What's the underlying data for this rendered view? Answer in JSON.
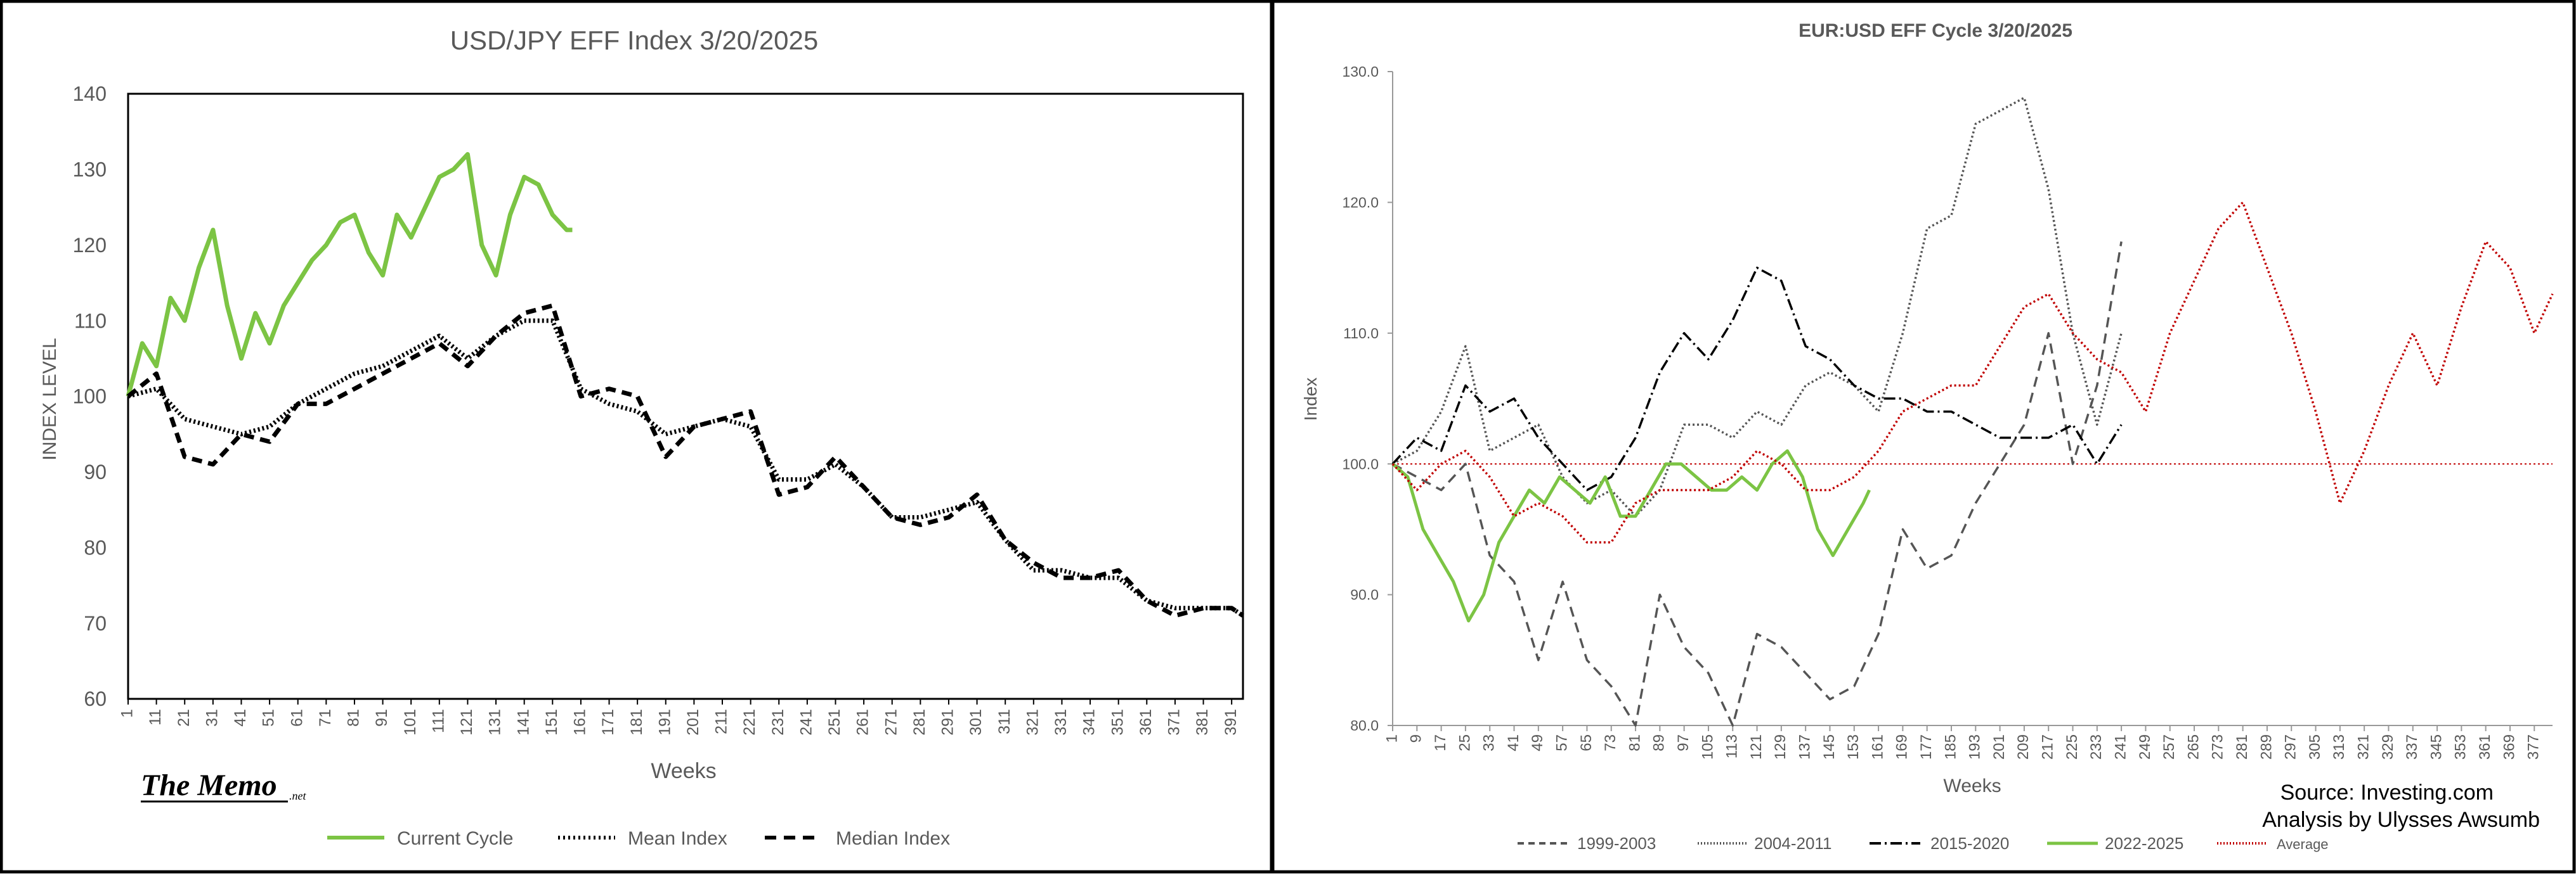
{
  "left_chart": {
    "title": "USD/JPY EFF Index 3/20/2025",
    "xlabel": "Weeks",
    "ylabel": "INDEX LEVEL",
    "logo_main": "The Memo",
    "logo_sub": ".net",
    "legend": [
      "Current Cycle",
      "Mean Index",
      "Median Index"
    ]
  },
  "right_chart": {
    "title": "EUR:USD  EFF Cycle 3/20/2025",
    "xlabel": "Weeks",
    "ylabel": "Index",
    "source": "Source: Investing.com",
    "analysis": "Analysis by Ulysses Awsumb",
    "legend": [
      "1999-2003",
      "2004-2011",
      "2015-2020",
      "2022-2025",
      "Average"
    ]
  },
  "colors": {
    "green": "#7cc444",
    "black": "#000000",
    "gray": "#555555",
    "red": "#c00000",
    "frame": "#000000"
  },
  "chart_data": [
    {
      "type": "line",
      "title": "USD/JPY EFF Index 3/20/2025",
      "xlabel": "Weeks",
      "ylabel": "INDEX LEVEL",
      "xlim": [
        1,
        395
      ],
      "ylim": [
        60,
        140
      ],
      "y_ticks": [
        60,
        70,
        80,
        90,
        100,
        110,
        120,
        130,
        140
      ],
      "x_ticks": [
        1,
        11,
        21,
        31,
        41,
        51,
        61,
        71,
        81,
        91,
        101,
        111,
        121,
        131,
        141,
        151,
        161,
        171,
        181,
        191,
        201,
        211,
        221,
        231,
        241,
        251,
        261,
        271,
        281,
        291,
        301,
        311,
        321,
        331,
        341,
        351,
        361,
        371,
        381,
        391
      ],
      "legend_position": "bottom",
      "series": [
        {
          "name": "Current Cycle",
          "style": "solid",
          "color": "#7cc444",
          "x": [
            1,
            6,
            11,
            16,
            21,
            26,
            31,
            36,
            41,
            46,
            51,
            56,
            61,
            66,
            71,
            76,
            81,
            86,
            91,
            96,
            101,
            106,
            111,
            116,
            121,
            126,
            131,
            136,
            141,
            146,
            151,
            156,
            158
          ],
          "y": [
            100,
            107,
            104,
            113,
            110,
            117,
            122,
            112,
            105,
            111,
            107,
            112,
            115,
            118,
            120,
            123,
            124,
            119,
            116,
            124,
            121,
            125,
            129,
            130,
            132,
            120,
            116,
            124,
            129,
            128,
            124,
            122,
            122
          ]
        },
        {
          "name": "Mean Index",
          "style": "dotted",
          "color": "#000000",
          "x": [
            1,
            11,
            21,
            31,
            41,
            51,
            61,
            71,
            81,
            91,
            101,
            111,
            121,
            131,
            141,
            151,
            161,
            171,
            181,
            191,
            201,
            211,
            221,
            231,
            241,
            251,
            261,
            271,
            281,
            291,
            301,
            311,
            321,
            331,
            341,
            351,
            361,
            371,
            381,
            391,
            395
          ],
          "y": [
            100,
            101,
            97,
            96,
            95,
            96,
            99,
            101,
            103,
            104,
            106,
            108,
            105,
            108,
            110,
            110,
            101,
            99,
            98,
            95,
            96,
            97,
            96,
            89,
            89,
            91,
            88,
            84,
            84,
            85,
            86,
            81,
            77,
            77,
            76,
            76,
            73,
            72,
            72,
            72,
            71
          ]
        },
        {
          "name": "Median Index",
          "style": "dashed",
          "color": "#000000",
          "x": [
            1,
            11,
            21,
            31,
            41,
            51,
            61,
            71,
            81,
            91,
            101,
            111,
            121,
            131,
            141,
            151,
            161,
            171,
            181,
            191,
            201,
            211,
            221,
            231,
            241,
            251,
            261,
            271,
            281,
            291,
            301,
            311,
            321,
            331,
            341,
            351,
            361,
            371,
            381,
            391,
            395
          ],
          "y": [
            100,
            103,
            92,
            91,
            95,
            94,
            99,
            99,
            101,
            103,
            105,
            107,
            104,
            108,
            111,
            112,
            100,
            101,
            100,
            92,
            96,
            97,
            98,
            87,
            88,
            92,
            88,
            84,
            83,
            84,
            87,
            81,
            78,
            76,
            76,
            77,
            73,
            71,
            72,
            72,
            71
          ]
        }
      ]
    },
    {
      "type": "line",
      "title": "EUR:USD  EFF Cycle 3/20/2025",
      "xlabel": "Weeks",
      "ylabel": "Index",
      "xlim": [
        1,
        383
      ],
      "ylim": [
        80,
        130
      ],
      "y_ticks": [
        80.0,
        90.0,
        100.0,
        110.0,
        120.0,
        130.0
      ],
      "x_ticks": [
        1,
        9,
        17,
        25,
        33,
        41,
        49,
        57,
        65,
        73,
        81,
        89,
        97,
        105,
        113,
        121,
        129,
        137,
        145,
        153,
        161,
        169,
        177,
        185,
        193,
        201,
        209,
        217,
        225,
        233,
        241,
        249,
        257,
        265,
        273,
        281,
        289,
        297,
        305,
        313,
        321,
        329,
        337,
        345,
        353,
        361,
        369,
        377
      ],
      "reference_line": 100,
      "legend_position": "bottom",
      "series": [
        {
          "name": "1999-2003",
          "style": "dashed",
          "color": "#555555",
          "x": [
            1,
            9,
            17,
            25,
            33,
            41,
            49,
            57,
            65,
            73,
            81,
            89,
            97,
            105,
            113,
            121,
            129,
            137,
            145,
            153,
            161,
            169,
            177,
            185,
            193,
            201,
            209,
            217,
            225,
            233,
            241
          ],
          "y": [
            100,
            99,
            98,
            100,
            93,
            91,
            85,
            91,
            85,
            83,
            80,
            90,
            86,
            84,
            80,
            87,
            86,
            84,
            82,
            83,
            87,
            95,
            92,
            93,
            97,
            100,
            103,
            110,
            100,
            106,
            117
          ]
        },
        {
          "name": "2004-2011",
          "style": "dotted",
          "color": "#555555",
          "x": [
            1,
            9,
            17,
            25,
            33,
            41,
            49,
            57,
            65,
            73,
            81,
            89,
            97,
            105,
            113,
            121,
            129,
            137,
            145,
            153,
            161,
            169,
            177,
            185,
            193,
            201,
            209,
            217,
            225,
            233,
            241
          ],
          "y": [
            100,
            101,
            104,
            109,
            101,
            102,
            103,
            99,
            97,
            98,
            96,
            98,
            103,
            103,
            102,
            104,
            103,
            106,
            107,
            106,
            104,
            110,
            118,
            119,
            126,
            127,
            128,
            121,
            110,
            103,
            110
          ]
        },
        {
          "name": "2015-2020",
          "style": "dashdot",
          "color": "#000000",
          "x": [
            1,
            9,
            17,
            25,
            33,
            41,
            49,
            57,
            65,
            73,
            81,
            89,
            97,
            105,
            113,
            121,
            129,
            137,
            145,
            153,
            161,
            169,
            177,
            185,
            193,
            201,
            209,
            217,
            225,
            233,
            241
          ],
          "y": [
            100,
            102,
            101,
            106,
            104,
            105,
            102,
            100,
            98,
            99,
            102,
            107,
            110,
            108,
            111,
            115,
            114,
            109,
            108,
            106,
            105,
            105,
            104,
            104,
            103,
            102,
            102,
            102,
            103,
            100,
            103
          ]
        },
        {
          "name": "2022-2025",
          "style": "solid",
          "color": "#7cc444",
          "x": [
            1,
            6,
            11,
            16,
            21,
            26,
            31,
            36,
            41,
            46,
            51,
            56,
            61,
            66,
            71,
            76,
            81,
            86,
            91,
            96,
            101,
            106,
            111,
            116,
            121,
            126,
            131,
            136,
            141,
            146,
            151,
            156,
            158
          ],
          "y": [
            100,
            99,
            95,
            93,
            91,
            88,
            90,
            94,
            96,
            98,
            97,
            99,
            98,
            97,
            99,
            96,
            96,
            98,
            100,
            100,
            99,
            98,
            98,
            99,
            98,
            100,
            101,
            99,
            95,
            93,
            95,
            97,
            98
          ]
        },
        {
          "name": "Average",
          "style": "dotted",
          "color": "#c00000",
          "x": [
            1,
            9,
            17,
            25,
            33,
            41,
            49,
            57,
            65,
            73,
            81,
            89,
            97,
            105,
            113,
            121,
            129,
            137,
            145,
            153,
            161,
            169,
            177,
            185,
            193,
            201,
            209,
            217,
            225,
            233,
            241,
            249,
            257,
            265,
            273,
            281,
            289,
            297,
            305,
            313,
            321,
            329,
            337,
            345,
            353,
            361,
            369,
            377,
            383
          ],
          "y": [
            100,
            98,
            100,
            101,
            99,
            96,
            97,
            96,
            94,
            94,
            97,
            98,
            98,
            98,
            99,
            101,
            100,
            98,
            98,
            99,
            101,
            104,
            105,
            106,
            106,
            109,
            112,
            113,
            110,
            108,
            107,
            104,
            110,
            114,
            118,
            120,
            115,
            110,
            104,
            97,
            101,
            106,
            110,
            106,
            112,
            117,
            115,
            110,
            113
          ]
        }
      ]
    }
  ]
}
